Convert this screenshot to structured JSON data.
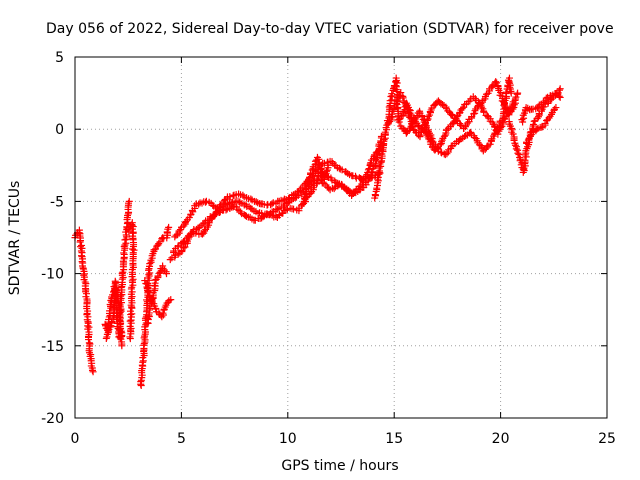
{
  "chart_data": {
    "type": "scatter",
    "title": "Day 056 of 2022, Sidereal Day-to-day VTEC variation (SDTVAR) for receiver pove",
    "xlabel": "GPS time / hours",
    "ylabel": "SDTVAR / TECUs",
    "xlim": [
      0,
      25
    ],
    "ylim": [
      -20,
      5
    ],
    "xticks": [
      0,
      5,
      10,
      15,
      20,
      25
    ],
    "yticks": [
      5,
      0,
      -5,
      -10,
      -15,
      -20
    ],
    "grid": true,
    "marker": "+",
    "colors": {
      "series": "#ff0000",
      "grid": "#a0a0a0",
      "axis": "#000000"
    },
    "series": [
      {
        "name": "SDTVAR",
        "tracks": [
          [
            [
              0.0,
              -7.5
            ],
            [
              0.2,
              -7.0
            ],
            [
              0.35,
              -9.0
            ],
            [
              0.5,
              -11.0
            ],
            [
              0.6,
              -13.0
            ],
            [
              0.7,
              -15.5
            ],
            [
              0.85,
              -16.8
            ]
          ],
          [
            [
              1.4,
              -13.5
            ],
            [
              1.6,
              -14.0
            ],
            [
              1.8,
              -13.0
            ],
            [
              1.9,
              -11.0
            ],
            [
              2.0,
              -13.5
            ],
            [
              2.1,
              -14.5
            ],
            [
              2.15,
              -12.0
            ],
            [
              2.25,
              -10.0
            ],
            [
              2.35,
              -8.0
            ],
            [
              2.5,
              -6.0
            ],
            [
              2.55,
              -5.0
            ]
          ],
          [
            [
              1.5,
              -14.5
            ],
            [
              1.7,
              -12.0
            ],
            [
              1.9,
              -10.5
            ],
            [
              2.1,
              -12.5
            ],
            [
              2.2,
              -15.0
            ]
          ],
          [
            [
              2.5,
              -7.0
            ],
            [
              2.7,
              -6.5
            ],
            [
              2.75,
              -9.0
            ],
            [
              2.65,
              -12.0
            ],
            [
              2.6,
              -14.5
            ]
          ],
          [
            [
              3.1,
              -17.8
            ],
            [
              3.2,
              -16.0
            ],
            [
              3.3,
              -14.0
            ],
            [
              3.4,
              -11.5
            ],
            [
              3.5,
              -9.5
            ],
            [
              3.7,
              -8.5
            ],
            [
              3.9,
              -8.0
            ],
            [
              4.1,
              -7.5
            ],
            [
              4.3,
              -7.5
            ],
            [
              4.4,
              -6.8
            ]
          ],
          [
            [
              3.3,
              -10.5
            ],
            [
              3.5,
              -11.5
            ],
            [
              3.8,
              -12.5
            ],
            [
              4.1,
              -13.0
            ],
            [
              4.3,
              -12.0
            ],
            [
              4.5,
              -11.8
            ]
          ],
          [
            [
              3.4,
              -13.5
            ],
            [
              3.6,
              -12.0
            ],
            [
              3.8,
              -10.5
            ],
            [
              4.1,
              -9.5
            ],
            [
              4.3,
              -10.0
            ]
          ],
          [
            [
              4.7,
              -7.5
            ],
            [
              5.2,
              -6.5
            ],
            [
              5.7,
              -5.2
            ],
            [
              6.2,
              -5.0
            ],
            [
              6.7,
              -5.5
            ],
            [
              7.2,
              -4.7
            ],
            [
              7.8,
              -4.5
            ],
            [
              8.4,
              -5.0
            ],
            [
              9.0,
              -5.3
            ],
            [
              9.6,
              -5.0
            ],
            [
              10.0,
              -4.8
            ],
            [
              10.5,
              -4.3
            ],
            [
              11.0,
              -3.5
            ],
            [
              11.5,
              -2.5
            ],
            [
              12.0,
              -2.2
            ],
            [
              12.5,
              -2.8
            ],
            [
              13.0,
              -3.2
            ],
            [
              13.5,
              -3.5
            ],
            [
              14.0,
              -3.3
            ],
            [
              14.3,
              -3.0
            ]
          ],
          [
            [
              4.6,
              -8.5
            ],
            [
              5.1,
              -7.8
            ],
            [
              5.6,
              -7.0
            ],
            [
              6.1,
              -6.5
            ],
            [
              6.6,
              -5.8
            ],
            [
              7.1,
              -5.2
            ],
            [
              7.6,
              -5.0
            ],
            [
              8.1,
              -5.3
            ],
            [
              8.6,
              -5.8
            ],
            [
              9.1,
              -5.9
            ],
            [
              9.6,
              -5.5
            ],
            [
              10.1,
              -5.0
            ],
            [
              10.6,
              -4.5
            ],
            [
              11.1,
              -3.8
            ],
            [
              11.6,
              -3.0
            ],
            [
              12.1,
              -3.5
            ],
            [
              12.6,
              -4.0
            ],
            [
              13.1,
              -4.5
            ],
            [
              13.6,
              -4.0
            ],
            [
              14.1,
              -2.5
            ],
            [
              14.4,
              -0.5
            ]
          ],
          [
            [
              4.5,
              -9.0
            ],
            [
              5.0,
              -8.5
            ],
            [
              5.5,
              -7.2
            ],
            [
              6.0,
              -7.3
            ],
            [
              6.5,
              -6.0
            ],
            [
              7.0,
              -5.6
            ],
            [
              7.5,
              -5.3
            ],
            [
              8.0,
              -6.0
            ],
            [
              8.5,
              -6.3
            ],
            [
              9.0,
              -5.9
            ],
            [
              9.5,
              -6.1
            ],
            [
              10.0,
              -5.5
            ],
            [
              10.5,
              -5.6
            ],
            [
              11.0,
              -4.5
            ],
            [
              11.5,
              -3.5
            ],
            [
              12.0,
              -4.2
            ],
            [
              12.5,
              -3.8
            ],
            [
              13.0,
              -4.6
            ],
            [
              13.5,
              -3.8
            ],
            [
              14.0,
              -2.0
            ],
            [
              14.5,
              -1.0
            ]
          ],
          [
            [
              10.8,
              -5.0
            ],
            [
              11.1,
              -3.0
            ],
            [
              11.4,
              -2.0
            ],
            [
              11.7,
              -3.5
            ],
            [
              11.9,
              -2.5
            ]
          ],
          [
            [
              14.1,
              -4.8
            ],
            [
              14.3,
              -3.0
            ],
            [
              14.5,
              -1.0
            ],
            [
              14.7,
              0.5
            ],
            [
              14.9,
              2.5
            ],
            [
              15.1,
              3.5
            ],
            [
              15.2,
              0.5
            ],
            [
              15.4,
              1.0
            ],
            [
              15.6,
              1.8
            ],
            [
              15.8,
              1.0
            ],
            [
              16.0,
              0.5
            ],
            [
              16.3,
              0.0
            ],
            [
              16.6,
              -0.5
            ],
            [
              16.9,
              -1.5
            ],
            [
              17.2,
              -1.0
            ],
            [
              17.5,
              0.0
            ],
            [
              17.8,
              0.5
            ],
            [
              18.1,
              1.2
            ],
            [
              18.4,
              1.8
            ],
            [
              18.7,
              2.2
            ],
            [
              19.0,
              1.8
            ],
            [
              19.3,
              1.0
            ],
            [
              19.6,
              0.5
            ],
            [
              19.9,
              -0.3
            ],
            [
              20.2,
              0.8
            ],
            [
              20.5,
              1.5
            ],
            [
              20.8,
              2.5
            ]
          ],
          [
            [
              14.8,
              0.5
            ],
            [
              15.0,
              1.5
            ],
            [
              15.3,
              2.5
            ],
            [
              15.6,
              1.5
            ],
            [
              15.9,
              0.0
            ],
            [
              16.2,
              -0.5
            ],
            [
              16.5,
              0.5
            ],
            [
              16.8,
              1.5
            ],
            [
              17.1,
              2.0
            ],
            [
              17.4,
              1.5
            ],
            [
              17.7,
              1.0
            ],
            [
              18.0,
              0.5
            ],
            [
              18.3,
              0.0
            ],
            [
              18.6,
              0.8
            ],
            [
              18.9,
              1.5
            ],
            [
              19.2,
              2.0
            ],
            [
              19.5,
              2.8
            ],
            [
              19.8,
              3.3
            ],
            [
              20.1,
              2.0
            ],
            [
              20.4,
              1.0
            ],
            [
              20.7,
              1.8
            ]
          ],
          [
            [
              15.3,
              0.2
            ],
            [
              15.6,
              -0.3
            ],
            [
              15.9,
              0.5
            ],
            [
              16.2,
              1.2
            ],
            [
              16.5,
              0.2
            ],
            [
              16.8,
              -0.8
            ],
            [
              17.1,
              -1.5
            ],
            [
              17.4,
              -1.8
            ],
            [
              17.7,
              -1.2
            ],
            [
              18.0,
              -0.8
            ],
            [
              18.3,
              -0.5
            ],
            [
              18.6,
              -0.2
            ],
            [
              18.9,
              -0.8
            ],
            [
              19.2,
              -1.5
            ],
            [
              19.5,
              -1.0
            ],
            [
              19.8,
              0.0
            ],
            [
              20.1,
              0.8
            ],
            [
              20.4,
              3.5
            ],
            [
              20.5,
              2.5
            ]
          ],
          [
            [
              20.4,
              0.5
            ],
            [
              20.6,
              -0.5
            ],
            [
              20.8,
              -1.5
            ],
            [
              21.0,
              -2.5
            ],
            [
              21.1,
              -3.0
            ],
            [
              21.2,
              -1.5
            ],
            [
              21.4,
              -0.5
            ],
            [
              21.6,
              0.5
            ],
            [
              21.8,
              1.0
            ],
            [
              22.0,
              1.5
            ],
            [
              22.2,
              1.8
            ],
            [
              22.5,
              2.2
            ],
            [
              22.8,
              2.8
            ]
          ],
          [
            [
              21.0,
              0.5
            ],
            [
              21.2,
              1.5
            ],
            [
              21.4,
              1.3
            ],
            [
              21.7,
              1.5
            ],
            [
              22.0,
              1.8
            ],
            [
              22.3,
              2.3
            ],
            [
              22.6,
              2.5
            ],
            [
              22.8,
              2.2
            ]
          ],
          [
            [
              21.2,
              -1.0
            ],
            [
              21.4,
              -0.3
            ],
            [
              21.7,
              0.0
            ],
            [
              22.0,
              0.2
            ],
            [
              22.3,
              0.8
            ],
            [
              22.6,
              1.5
            ]
          ]
        ]
      }
    ]
  }
}
